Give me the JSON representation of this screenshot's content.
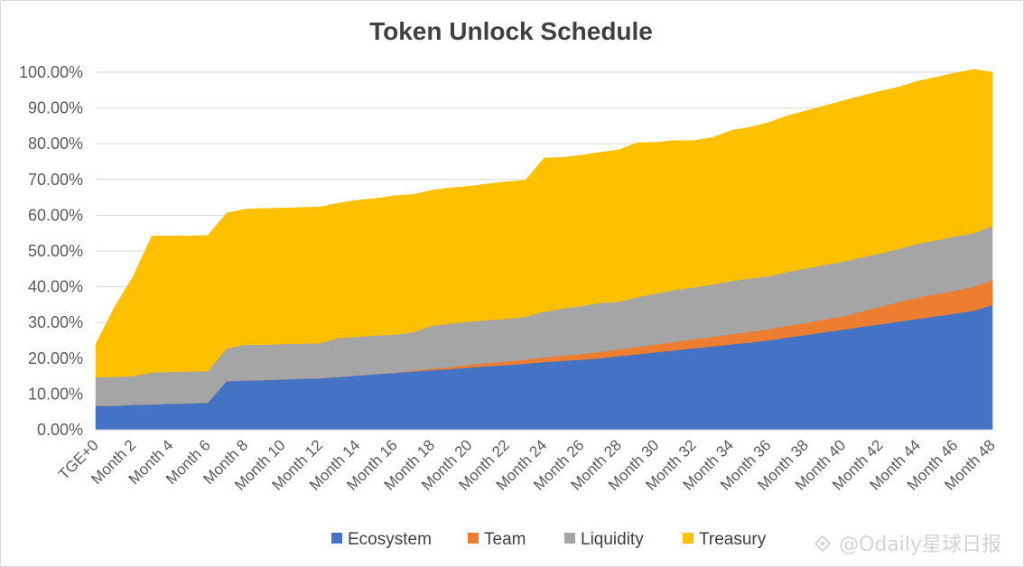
{
  "chart_data": {
    "type": "area",
    "stacked": true,
    "title": "Token Unlock Schedule",
    "xlabel": "",
    "ylabel": "",
    "ylim": [
      0,
      100
    ],
    "y_tick_labels": [
      "0.00%",
      "10.00%",
      "20.00%",
      "30.00%",
      "40.00%",
      "50.00%",
      "60.00%",
      "70.00%",
      "80.00%",
      "90.00%",
      "100.00%"
    ],
    "x": [
      "TGE+0",
      "Month 1",
      "Month 2",
      "Month 3",
      "Month 4",
      "Month 5",
      "Month 6",
      "Month 7",
      "Month 8",
      "Month 9",
      "Month 10",
      "Month 11",
      "Month 12",
      "Month 13",
      "Month 14",
      "Month 15",
      "Month 16",
      "Month 17",
      "Month 18",
      "Month 19",
      "Month 20",
      "Month 21",
      "Month 22",
      "Month 23",
      "Month 24",
      "Month 25",
      "Month 26",
      "Month 27",
      "Month 28",
      "Month 29",
      "Month 30",
      "Month 31",
      "Month 32",
      "Month 33",
      "Month 34",
      "Month 35",
      "Month 36",
      "Month 37",
      "Month 38",
      "Month 39",
      "Month 40",
      "Month 41",
      "Month 42",
      "Month 43",
      "Month 44",
      "Month 45",
      "Month 46",
      "Month 47",
      "Month 48"
    ],
    "x_tick_labels_shown": [
      "TGE+0",
      "Month 2",
      "Month 4",
      "Month 6",
      "Month 8",
      "Month 10",
      "Month 12",
      "Month 14",
      "Month 16",
      "Month 18",
      "Month 20",
      "Month 22",
      "Month 24",
      "Month 26",
      "Month 28",
      "Month 30",
      "Month 32",
      "Month 34",
      "Month 36",
      "Month 38",
      "Month 40",
      "Month 42",
      "Month 44",
      "Month 46",
      "Month 48"
    ],
    "grid": "horizontal",
    "legend_position": "bottom",
    "series": [
      {
        "name": "Ecosystem",
        "color": "#4472c4",
        "values": [
          6.7,
          6.7,
          7.0,
          7.1,
          7.3,
          7.4,
          7.6,
          13.6,
          13.8,
          13.9,
          14.1,
          14.3,
          14.4,
          14.8,
          15.2,
          15.6,
          15.9,
          16.3,
          16.7,
          17.0,
          17.4,
          17.8,
          18.1,
          18.5,
          18.9,
          19.3,
          19.6,
          20.0,
          20.6,
          21.1,
          21.7,
          22.2,
          22.8,
          23.3,
          23.9,
          24.4,
          25.0,
          25.8,
          26.5,
          27.3,
          28.0,
          28.8,
          29.5,
          30.3,
          31.0,
          31.8,
          32.5,
          33.3,
          34.9
        ]
      },
      {
        "name": "Team",
        "color": "#ed7d31",
        "values": [
          0,
          0,
          0,
          0,
          0,
          0,
          0,
          0,
          0,
          0,
          0,
          0,
          0,
          0,
          0,
          0,
          0,
          0.3,
          0.4,
          0.6,
          0.8,
          0.9,
          1.0,
          1.2,
          1.3,
          1.5,
          1.6,
          1.8,
          1.9,
          2.1,
          2.2,
          2.4,
          2.5,
          2.7,
          2.8,
          3.0,
          3.1,
          3.3,
          3.4,
          3.6,
          3.7,
          4.3,
          4.9,
          5.5,
          6.0,
          6.2,
          6.4,
          6.7,
          7.0
        ]
      },
      {
        "name": "Liquidity",
        "color": "#a5a5a5",
        "values": [
          8.0,
          8.1,
          8.0,
          8.9,
          8.9,
          8.9,
          8.8,
          9.1,
          10.0,
          9.9,
          9.9,
          9.8,
          9.8,
          10.9,
          10.8,
          10.8,
          10.7,
          10.7,
          12.0,
          12.1,
          12.0,
          12.0,
          11.9,
          11.9,
          12.8,
          13.1,
          13.4,
          13.7,
          13.3,
          13.9,
          14.2,
          14.5,
          14.5,
          14.6,
          14.9,
          14.9,
          14.8,
          15.0,
          15.2,
          15.2,
          15.3,
          15.1,
          14.9,
          14.8,
          15.0,
          15.0,
          15.2,
          15.0,
          15.1
        ]
      },
      {
        "name": "Treasury",
        "color": "#ffc000",
        "values": [
          9.3,
          19.5,
          27.9,
          38.2,
          38.0,
          37.9,
          38.0,
          37.9,
          37.9,
          38.1,
          38.0,
          38.1,
          38.1,
          37.7,
          38.2,
          38.3,
          38.9,
          38.5,
          37.9,
          38.0,
          37.9,
          38.1,
          38.4,
          38.2,
          43.0,
          42.3,
          42.2,
          42.1,
          42.5,
          43.2,
          42.3,
          41.8,
          41.1,
          41.1,
          42.1,
          42.3,
          43.0,
          43.7,
          44.1,
          44.5,
          45.0,
          45.2,
          45.4,
          45.3,
          45.5,
          45.6,
          45.7,
          45.8,
          43.0
        ]
      }
    ]
  },
  "watermark": {
    "text": "@Odaily星球日报"
  }
}
